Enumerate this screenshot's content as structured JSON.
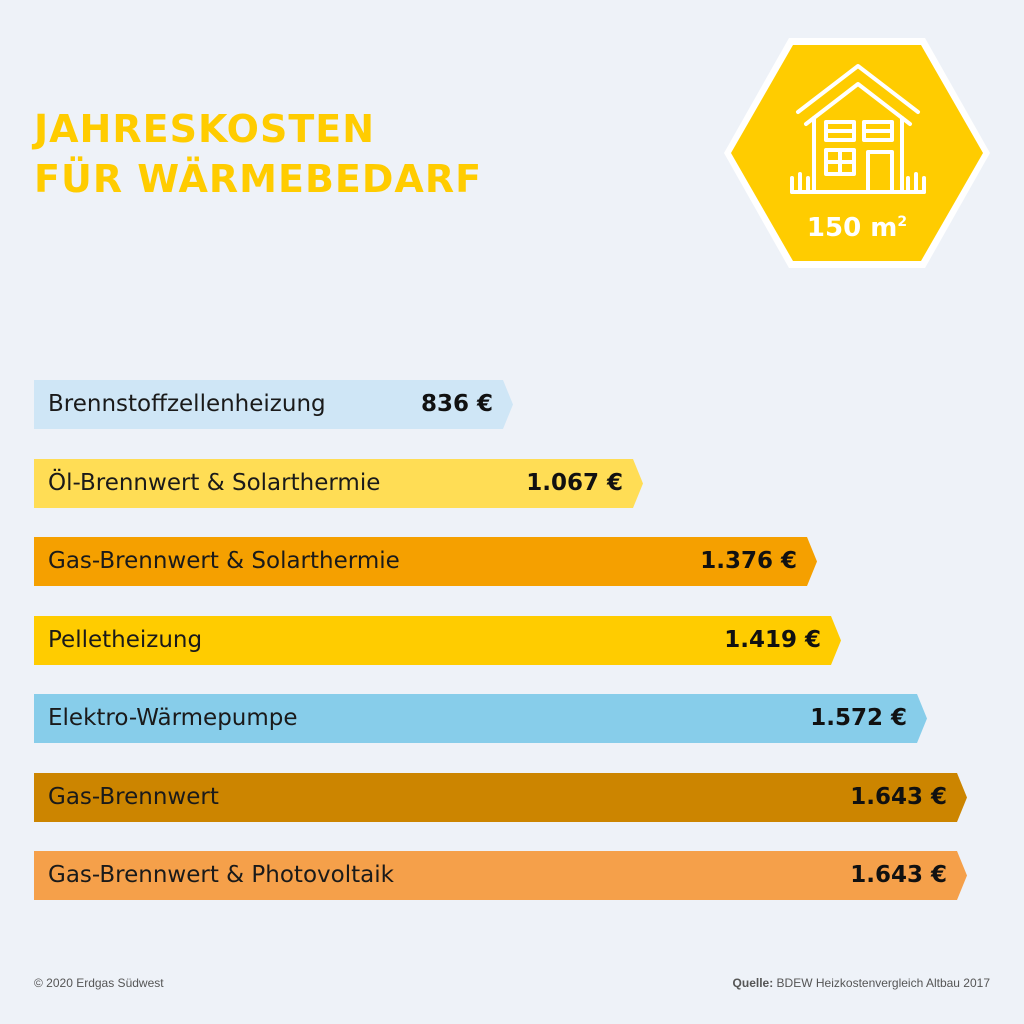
{
  "chart_data": {
    "type": "bar",
    "orientation": "horizontal",
    "title_lines": [
      "JAHRESKOSTEN",
      "FÜR WÄRMEBEDARF"
    ],
    "categories": [
      "Brennstoffzellenheizung",
      "Öl-Brennwert & Solarthermie",
      "Gas-Brennwert & Solarthermie",
      "Pelletheizung",
      "Elektro-Wärmepumpe",
      "Gas-Brennwert",
      "Gas-Brennwert & Photovoltaik"
    ],
    "values": [
      836,
      1067,
      1376,
      1419,
      1572,
      1643,
      1643
    ],
    "value_labels": [
      "836 €",
      "1.067 €",
      "1.376 €",
      "1.419 €",
      "1.572 €",
      "1.643 €",
      "1.643 €"
    ],
    "colors": [
      "#cfe6f6",
      "#ffdd55",
      "#f5a000",
      "#ffcc00",
      "#87cdea",
      "#cc8500",
      "#f5a04a"
    ],
    "unit": "€",
    "grid": false,
    "legend": "none"
  },
  "badge": {
    "area_value": "150 m",
    "area_exp": "2",
    "icon": "house-icon",
    "color": "#ffcc00"
  },
  "footer": {
    "copyright": "© 2020 Erdgas Südwest",
    "source_label": "Quelle:",
    "source_text": " BDEW Heizkostenvergleich Altbau 2017"
  }
}
